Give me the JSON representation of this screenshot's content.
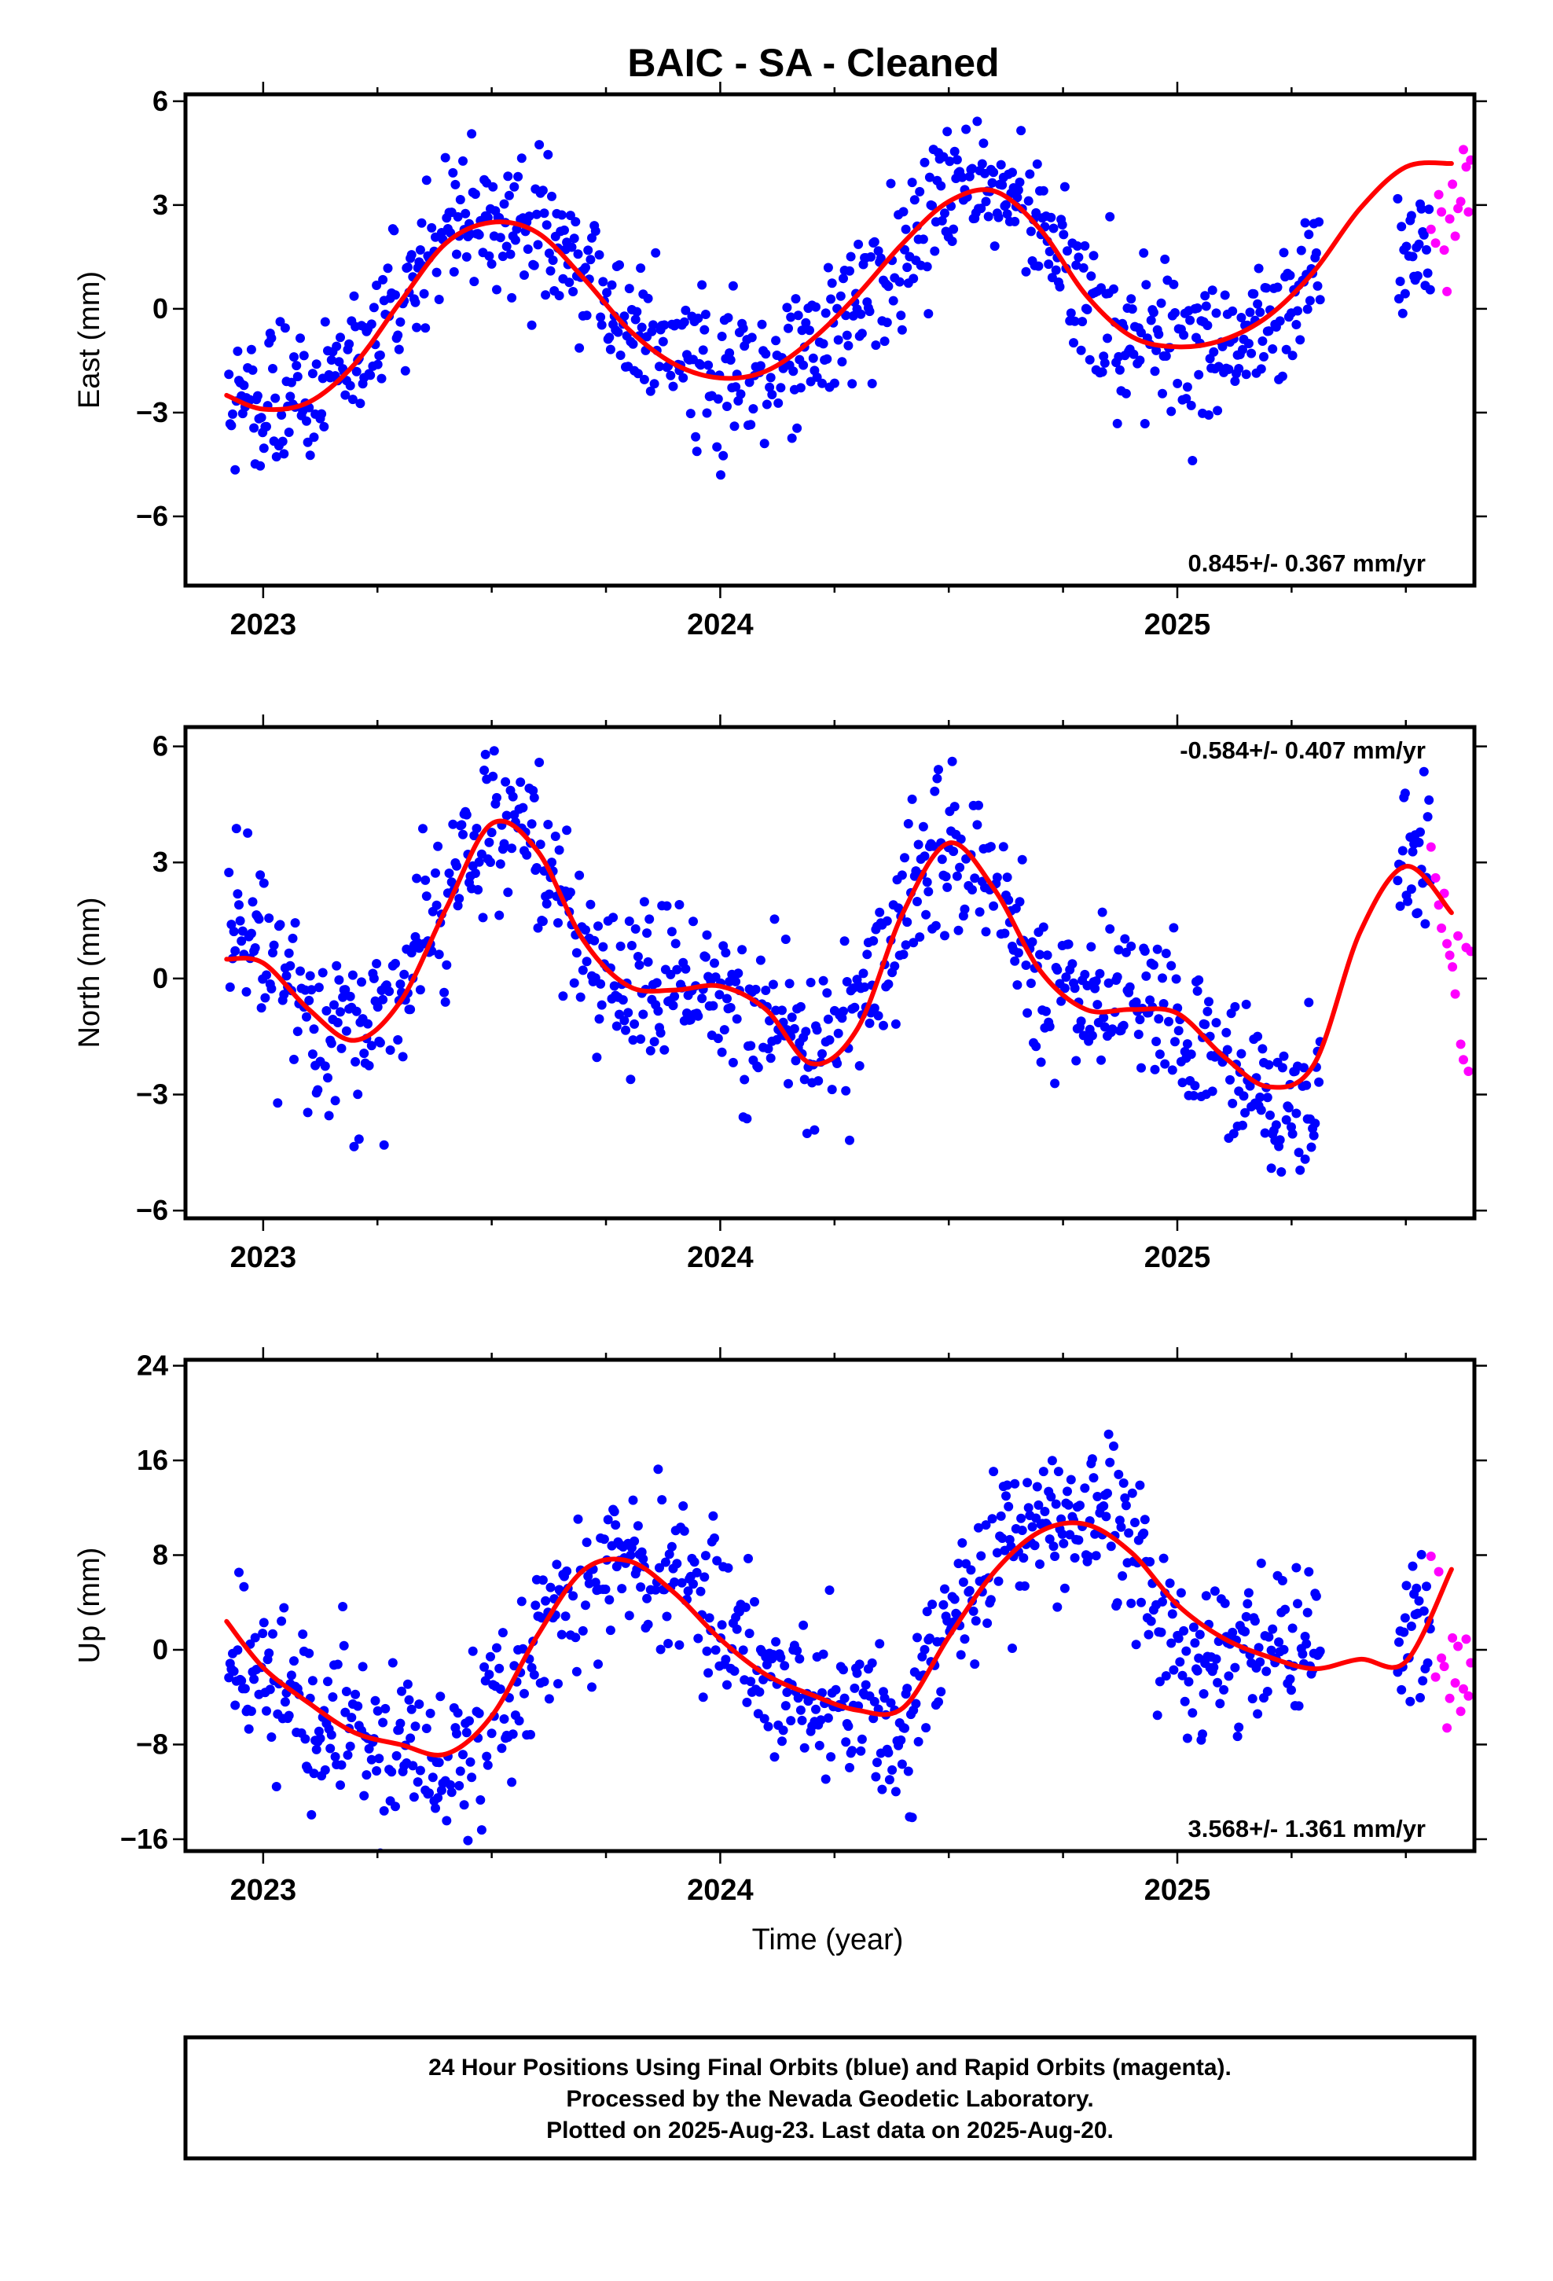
{
  "title": "BAIC  - SA - Cleaned",
  "xlabel": "Time (year)",
  "footer_lines": [
    "24 Hour Positions Using Final Orbits (blue) and Rapid Orbits (magenta).",
    "Processed by the Nevada Geodetic Laboratory.",
    "Plotted on 2025-Aug-23. Last data on 2025-Aug-20."
  ],
  "colors": {
    "final_orbits": "#0000ff",
    "rapid_orbits": "#ff00ff",
    "model_fit": "#ff0000"
  },
  "chart_data": [
    {
      "type": "scatter",
      "ylabel": "East (mm)",
      "rate": "0.845+/- 0.367 mm/yr",
      "rate_position": "bottom-right",
      "xlim": [
        2022.83,
        2025.65
      ],
      "ylim": [
        -8.0,
        6.2
      ],
      "x_ticks": [
        "2023",
        "2024",
        "2025"
      ],
      "y_ticks": [
        {
          "value": 6,
          "label": "6"
        },
        {
          "value": 3,
          "label": "3"
        },
        {
          "value": 0,
          "label": "0"
        },
        {
          "value": -3,
          "label": "−3"
        },
        {
          "value": -6,
          "label": "−6"
        }
      ],
      "grid": false,
      "fit": {
        "name": "model fit",
        "x": [
          2022.92,
          2023.0,
          2023.1,
          2023.2,
          2023.3,
          2023.4,
          2023.5,
          2023.6,
          2023.7,
          2023.8,
          2023.9,
          2024.0,
          2024.1,
          2024.2,
          2024.3,
          2024.4,
          2024.5,
          2024.6,
          2024.7,
          2024.8,
          2024.9,
          2025.0,
          2025.1,
          2025.2,
          2025.3,
          2025.4,
          2025.5,
          2025.6
        ],
        "y": [
          -2.5,
          -2.9,
          -2.7,
          -1.6,
          0.2,
          1.9,
          2.5,
          2.2,
          0.9,
          -0.6,
          -1.6,
          -2.0,
          -1.8,
          -0.9,
          0.4,
          1.9,
          3.1,
          3.4,
          2.3,
          0.4,
          -0.8,
          -1.1,
          -0.9,
          -0.2,
          1.1,
          2.9,
          4.1,
          4.2
        ]
      },
      "final_trend": [
        [
          2022.92,
          -2.6
        ],
        [
          2023.0,
          -2.9
        ],
        [
          2023.1,
          -2.0
        ],
        [
          2023.2,
          -1.2
        ],
        [
          2023.3,
          0.6
        ],
        [
          2023.4,
          2.2
        ],
        [
          2023.5,
          2.5
        ],
        [
          2023.6,
          2.4
        ],
        [
          2023.7,
          1.1
        ],
        [
          2023.8,
          -0.6
        ],
        [
          2023.9,
          -1.5
        ],
        [
          2024.0,
          -1.9
        ],
        [
          2024.1,
          -1.8
        ],
        [
          2024.2,
          -1.0
        ],
        [
          2024.3,
          0.3
        ],
        [
          2024.4,
          1.7
        ],
        [
          2024.5,
          3.3
        ],
        [
          2024.6,
          3.8
        ],
        [
          2024.7,
          2.6
        ],
        [
          2024.8,
          0.2
        ],
        [
          2024.9,
          -1.1
        ],
        [
          2025.0,
          -1.2
        ],
        [
          2025.1,
          -1.0
        ],
        [
          2025.2,
          -0.5
        ],
        [
          2025.3,
          0.9
        ],
        [
          2025.5,
          1.8
        ],
        [
          2025.55,
          2.5
        ]
      ],
      "final_scatter": 1.05,
      "rapid_points": [
        [
          2025.555,
          2.3
        ],
        [
          2025.565,
          1.9
        ],
        [
          2025.572,
          3.3
        ],
        [
          2025.578,
          2.8
        ],
        [
          2025.584,
          1.7
        ],
        [
          2025.59,
          0.5
        ],
        [
          2025.596,
          2.6
        ],
        [
          2025.602,
          3.6
        ],
        [
          2025.608,
          2.1
        ],
        [
          2025.614,
          2.9
        ],
        [
          2025.62,
          3.1
        ],
        [
          2025.626,
          4.6
        ],
        [
          2025.632,
          4.1
        ],
        [
          2025.637,
          2.8
        ],
        [
          2025.642,
          4.3
        ]
      ]
    },
    {
      "type": "scatter",
      "ylabel": "North (mm)",
      "rate": "-0.584+/- 0.407 mm/yr",
      "rate_position": "top-right",
      "xlim": [
        2022.83,
        2025.65
      ],
      "ylim": [
        -6.2,
        6.5
      ],
      "x_ticks": [
        "2023",
        "2024",
        "2025"
      ],
      "y_ticks": [
        {
          "value": 6,
          "label": "6"
        },
        {
          "value": 3,
          "label": "3"
        },
        {
          "value": 0,
          "label": "0"
        },
        {
          "value": -3,
          "label": "−3"
        },
        {
          "value": -6,
          "label": "−6"
        }
      ],
      "grid": false,
      "fit": {
        "name": "model fit",
        "x": [
          2022.92,
          2023.0,
          2023.1,
          2023.2,
          2023.3,
          2023.4,
          2023.5,
          2023.6,
          2023.7,
          2023.8,
          2023.9,
          2024.0,
          2024.1,
          2024.2,
          2024.3,
          2024.4,
          2024.5,
          2024.6,
          2024.7,
          2024.8,
          2024.9,
          2025.0,
          2025.1,
          2025.2,
          2025.3,
          2025.4,
          2025.5,
          2025.6
        ],
        "y": [
          0.5,
          0.4,
          -0.8,
          -1.6,
          -0.6,
          1.8,
          4.0,
          3.3,
          1.0,
          -0.2,
          -0.3,
          -0.2,
          -0.8,
          -2.2,
          -1.3,
          1.7,
          3.5,
          2.3,
          0.2,
          -0.8,
          -0.8,
          -0.9,
          -2.0,
          -2.8,
          -2.2,
          1.2,
          2.9,
          1.7
        ]
      },
      "final_trend": [
        [
          2022.92,
          0.8
        ],
        [
          2023.0,
          0.5
        ],
        [
          2023.1,
          -0.9
        ],
        [
          2023.2,
          -1.5
        ],
        [
          2023.3,
          -0.4
        ],
        [
          2023.4,
          2.0
        ],
        [
          2023.5,
          4.1
        ],
        [
          2023.6,
          3.2
        ],
        [
          2023.7,
          0.9
        ],
        [
          2023.8,
          -0.3
        ],
        [
          2023.9,
          -0.5
        ],
        [
          2024.0,
          -0.4
        ],
        [
          2024.1,
          -0.9
        ],
        [
          2024.2,
          -2.2
        ],
        [
          2024.3,
          -1.1
        ],
        [
          2024.4,
          1.8
        ],
        [
          2024.5,
          3.4
        ],
        [
          2024.6,
          2.2
        ],
        [
          2024.7,
          0.0
        ],
        [
          2024.8,
          -0.6
        ],
        [
          2024.9,
          -0.8
        ],
        [
          2025.0,
          -1.2
        ],
        [
          2025.1,
          -2.2
        ],
        [
          2025.2,
          -3.0
        ],
        [
          2025.3,
          -3.3
        ],
        [
          2025.5,
          3.2
        ],
        [
          2025.55,
          2.9
        ]
      ],
      "final_scatter": 1.05,
      "rapid_points": [
        [
          2025.555,
          3.4
        ],
        [
          2025.565,
          2.6
        ],
        [
          2025.572,
          1.9
        ],
        [
          2025.578,
          1.3
        ],
        [
          2025.584,
          2.2
        ],
        [
          2025.59,
          0.9
        ],
        [
          2025.596,
          0.6
        ],
        [
          2025.602,
          0.3
        ],
        [
          2025.608,
          -0.4
        ],
        [
          2025.614,
          1.1
        ],
        [
          2025.62,
          -1.7
        ],
        [
          2025.626,
          -2.1
        ],
        [
          2025.632,
          0.8
        ],
        [
          2025.637,
          -2.4
        ],
        [
          2025.642,
          0.7
        ]
      ]
    },
    {
      "type": "scatter",
      "ylabel": "Up (mm)",
      "rate": "3.568+/- 1.361 mm/yr",
      "rate_position": "bottom-right",
      "xlim": [
        2022.83,
        2025.65
      ],
      "ylim": [
        -17.0,
        24.5
      ],
      "x_ticks": [
        "2023",
        "2024",
        "2025"
      ],
      "y_ticks": [
        {
          "value": 24,
          "label": "24"
        },
        {
          "value": 16,
          "label": "16"
        },
        {
          "value": 8,
          "label": "8"
        },
        {
          "value": 0,
          "label": "0"
        },
        {
          "value": -8,
          "label": "−8"
        },
        {
          "value": -16,
          "label": "−16"
        }
      ],
      "grid": false,
      "fit": {
        "name": "model fit",
        "x": [
          2022.92,
          2023.0,
          2023.1,
          2023.2,
          2023.3,
          2023.4,
          2023.5,
          2023.6,
          2023.7,
          2023.8,
          2023.9,
          2024.0,
          2024.1,
          2024.2,
          2024.3,
          2024.4,
          2024.5,
          2024.6,
          2024.7,
          2024.8,
          2024.9,
          2025.0,
          2025.1,
          2025.2,
          2025.3,
          2025.4,
          2025.5,
          2025.6
        ],
        "y": [
          2.4,
          -1.5,
          -4.5,
          -7.0,
          -8.0,
          -8.8,
          -5.6,
          1.2,
          6.7,
          7.5,
          4.8,
          0.9,
          -2.1,
          -3.8,
          -5.1,
          -4.9,
          1.1,
          6.6,
          10.0,
          10.6,
          8.2,
          3.8,
          1.0,
          -0.6,
          -1.6,
          -0.8,
          -1.0,
          6.8
        ]
      },
      "final_trend": [
        [
          2022.92,
          0.5
        ],
        [
          2023.0,
          -2.5
        ],
        [
          2023.1,
          -5.0
        ],
        [
          2023.2,
          -6.5
        ],
        [
          2023.3,
          -9.0
        ],
        [
          2023.4,
          -10.0
        ],
        [
          2023.5,
          -5.5
        ],
        [
          2023.6,
          1.0
        ],
        [
          2023.7,
          6.0
        ],
        [
          2023.8,
          8.5
        ],
        [
          2023.9,
          8.0
        ],
        [
          2024.0,
          3.0
        ],
        [
          2024.1,
          -2.0
        ],
        [
          2024.2,
          -4.0
        ],
        [
          2024.3,
          -5.0
        ],
        [
          2024.4,
          -6.5
        ],
        [
          2024.5,
          1.5
        ],
        [
          2024.6,
          7.0
        ],
        [
          2024.7,
          10.5
        ],
        [
          2024.8,
          11.0
        ],
        [
          2024.9,
          9.5
        ],
        [
          2025.0,
          -1.0
        ],
        [
          2025.1,
          -2.5
        ],
        [
          2025.2,
          1.5
        ],
        [
          2025.3,
          -1.5
        ],
        [
          2025.5,
          0.5
        ],
        [
          2025.55,
          2.0
        ]
      ],
      "final_scatter": 3.4,
      "rapid_points": [
        [
          2025.555,
          7.9
        ],
        [
          2025.565,
          -2.3
        ],
        [
          2025.572,
          6.6
        ],
        [
          2025.578,
          -0.7
        ],
        [
          2025.584,
          -1.4
        ],
        [
          2025.59,
          -6.6
        ],
        [
          2025.596,
          -4.1
        ],
        [
          2025.602,
          1.0
        ],
        [
          2025.608,
          -2.8
        ],
        [
          2025.614,
          0.3
        ],
        [
          2025.62,
          -5.2
        ],
        [
          2025.626,
          -3.3
        ],
        [
          2025.632,
          0.9
        ],
        [
          2025.637,
          -3.9
        ],
        [
          2025.642,
          -1.1
        ]
      ]
    }
  ]
}
